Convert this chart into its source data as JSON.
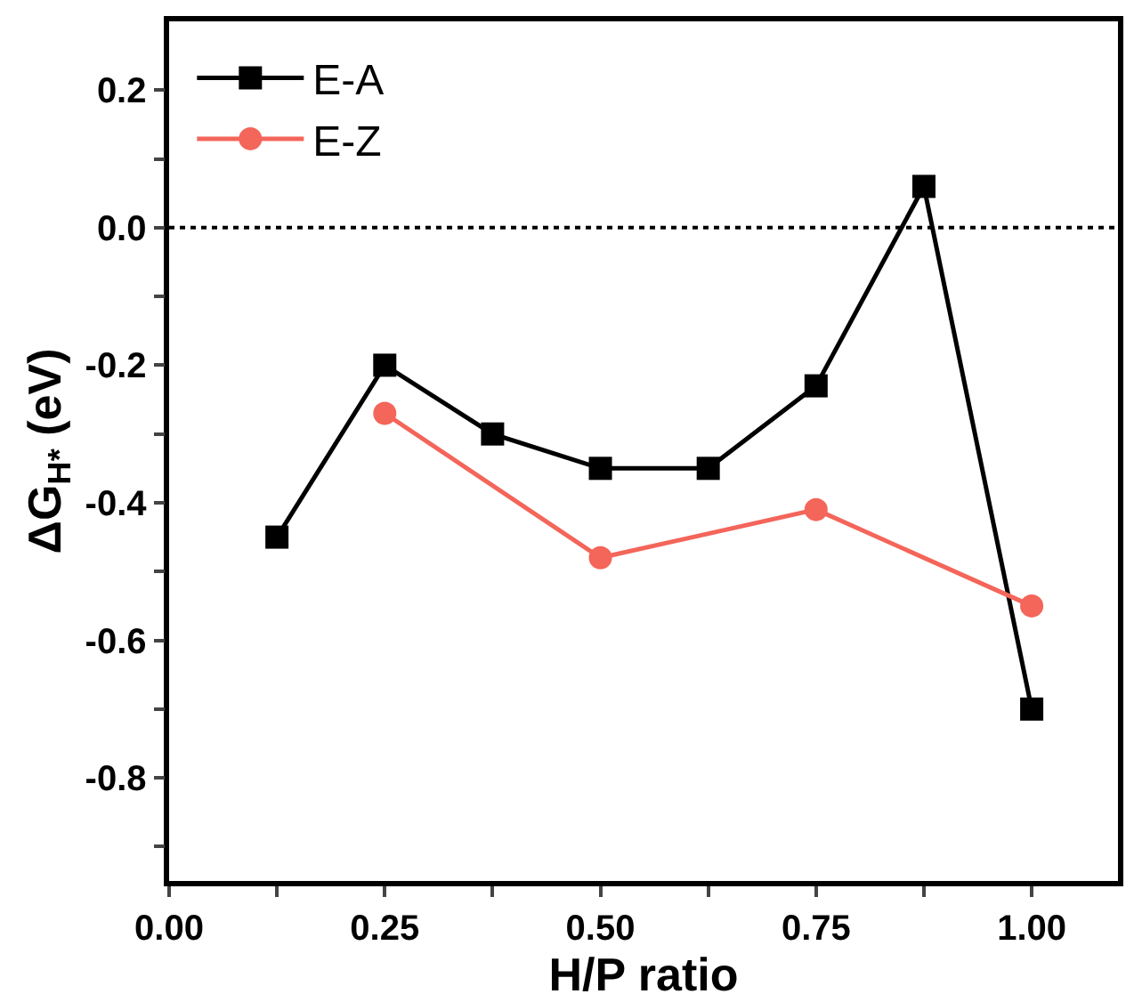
{
  "chart_data": {
    "type": "line",
    "xlabel": "H/P ratio",
    "ylabel": "ΔG$_{H*}$ (eV)",
    "xlim": [
      0,
      1.1
    ],
    "ylim": [
      -0.95,
      0.3
    ],
    "xticks": [
      {
        "value": 0,
        "label": "0.00"
      },
      {
        "value": 0.125,
        "label": null
      },
      {
        "value": 0.25,
        "label": "0.25"
      },
      {
        "value": 0.375,
        "label": null
      },
      {
        "value": 0.5,
        "label": "0.50"
      },
      {
        "value": 0.625,
        "label": null
      },
      {
        "value": 0.75,
        "label": "0.75"
      },
      {
        "value": 0.875,
        "label": null
      },
      {
        "value": 1,
        "label": "1.00"
      }
    ],
    "yticks": [
      {
        "value": 0.2,
        "label": "0.2"
      },
      {
        "value": 0.1,
        "label": null
      },
      {
        "value": 0,
        "label": "0.0"
      },
      {
        "value": -0.1,
        "label": null
      },
      {
        "value": -0.2,
        "label": "-0.2"
      },
      {
        "value": -0.3,
        "label": null
      },
      {
        "value": -0.4,
        "label": "-0.4"
      },
      {
        "value": -0.5,
        "label": null
      },
      {
        "value": -0.6,
        "label": "-0.6"
      },
      {
        "value": -0.7,
        "label": null
      },
      {
        "value": -0.8,
        "label": "-0.8"
      },
      {
        "value": -0.9,
        "label": null
      }
    ],
    "series": [
      {
        "name": "E-A",
        "color": "#000000",
        "marker": "square",
        "x": [
          0.125,
          0.25,
          0.375,
          0.5,
          0.625,
          0.75,
          0.875,
          1.0
        ],
        "values": [
          -0.45,
          -0.2,
          -0.3,
          -0.35,
          -0.35,
          -0.23,
          0.06,
          -0.7
        ]
      },
      {
        "name": "E-Z",
        "color": "#f4655a",
        "marker": "circle",
        "x": [
          0.25,
          0.5,
          0.75,
          1.0
        ],
        "values": [
          -0.27,
          -0.48,
          -0.41,
          -0.55
        ]
      }
    ],
    "ref_lines": [
      {
        "axis": "y",
        "value": 0,
        "color": "#000000",
        "line_style": "dotted"
      }
    ],
    "legend": "top left",
    "grid": false,
    "line_style": "solid"
  }
}
